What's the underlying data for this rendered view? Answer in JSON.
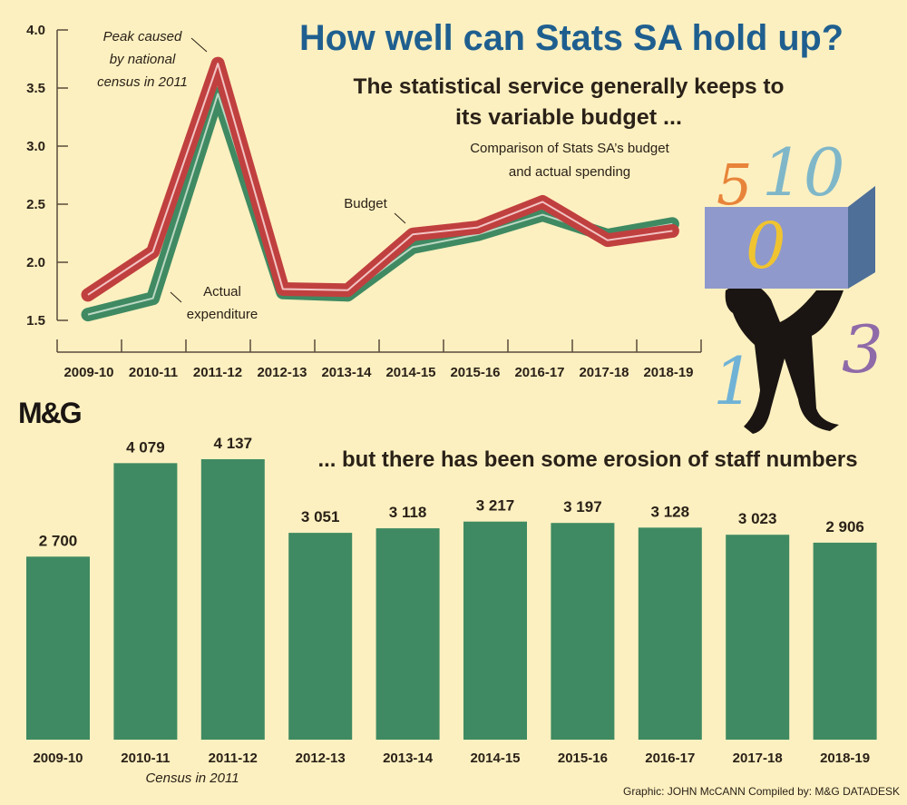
{
  "title": "How well can Stats SA hold up?",
  "subtitle_top": [
    "The statistical service generally keeps to",
    "its variable budget ..."
  ],
  "line_caption": [
    "Comparison of Stats SA’s budget",
    "and actual spending"
  ],
  "subtitle_bottom": "... but there has been some erosion of staff numbers",
  "logo": "M&G",
  "footer": "Graphic: JOHN McCANN  Compiled by: M&G DATADESK",
  "colors": {
    "background": "#fdf0c0",
    "budget": "#c0403f",
    "actual": "#3f8a62",
    "title": "#1f5f8f",
    "bars": "#3f8a62"
  },
  "chart_data": [
    {
      "type": "line",
      "title": "Comparison of Stats SA’s budget and actual spending",
      "categories": [
        "2009-10",
        "2010-11",
        "2011-12",
        "2012-13",
        "2013-14",
        "2014-15",
        "2015-16",
        "2016-17",
        "2017-18",
        "2018-19"
      ],
      "yticks": [
        "1.5",
        "2.0",
        "2.5",
        "3.0",
        "3.5",
        "4.0"
      ],
      "ylim": [
        1.5,
        4.0
      ],
      "series": [
        {
          "name": "Budget",
          "values": [
            1.72,
            2.09,
            3.71,
            1.77,
            1.76,
            2.24,
            2.3,
            2.52,
            2.19,
            2.27
          ]
        },
        {
          "name": "Actual expenditure",
          "values": [
            1.55,
            1.69,
            3.45,
            1.74,
            1.72,
            2.13,
            2.24,
            2.41,
            2.23,
            2.33
          ]
        }
      ],
      "annotations": {
        "peak": [
          "Peak caused",
          "by national",
          "census in 2011"
        ],
        "budget": "Budget",
        "actual": [
          "Actual",
          "expenditure"
        ]
      }
    },
    {
      "type": "bar",
      "title": "... but there has been some erosion of staff numbers",
      "categories": [
        "2009-10",
        "2010-11",
        "2011-12",
        "2012-13",
        "2013-14",
        "2014-15",
        "2015-16",
        "2016-17",
        "2017-18",
        "2018-19"
      ],
      "values": [
        2700,
        4079,
        4137,
        3051,
        3118,
        3217,
        3197,
        3128,
        3023,
        2906
      ],
      "labels": [
        "2 700",
        "4 079",
        "4 137",
        "3 051",
        "3 118",
        "3 217",
        "3 197",
        "3 128",
        "3 023",
        "2 906"
      ],
      "note": "Census in 2011"
    }
  ]
}
